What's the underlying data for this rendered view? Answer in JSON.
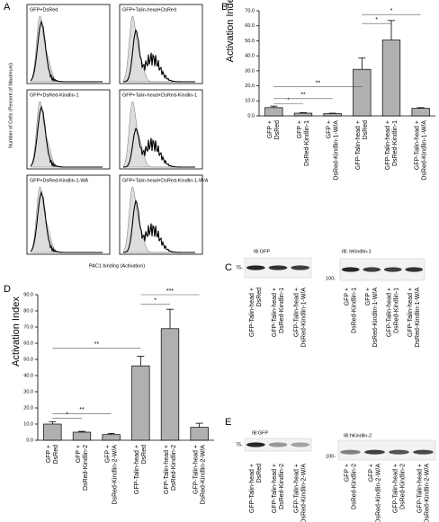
{
  "figure": {
    "letters": [
      "A",
      "B",
      "C",
      "D",
      "E"
    ],
    "histograms": {
      "labels": [
        "GFP+DsRed",
        "GFP+Talin-head+DsRed",
        "GFP+DsRed-Kindlin-1",
        "GFP+Talin-head+DsRed-Kindlin-1",
        "GFP+DsRed-Kindlin-1-WA",
        "GFP+Talin-head+DsRed-Kindlin-1-W/A"
      ],
      "y_label": "Number of Cells (Percent of Maximum)",
      "x_label": "PAC1 binding (Activation)"
    },
    "blots": [
      {
        "title": "IB:GFP",
        "marker": "75-",
        "lanes": [
          [
            "GFP-Talin-head +",
            "DsRed"
          ],
          [
            "GFP-Talin-head +",
            "DsRed-Kindlin-1"
          ],
          [
            "GFP-Talin-head +",
            "DsRed-Kindlin-1-W/A"
          ]
        ]
      },
      {
        "title": "IB: hKindlin-1",
        "marker": "100-",
        "lanes": [
          [
            "GFP +",
            "DsRed-Kindlin-1"
          ],
          [
            "GFP +",
            "DsRed-Kindlin-1-W/A"
          ],
          [
            "GFP-Talin-head +",
            "DsRed-Kindlin-1"
          ],
          [
            "GFP-Talin-head +",
            "DsRed-Kindlin-1-W/A"
          ]
        ]
      },
      {
        "title": "IB:GFP",
        "marker": "75-",
        "lanes": [
          [
            "GFP-Talin-head +",
            "DsRed"
          ],
          [
            "GFP-Talin-head +",
            "DsRed-Kindlin-2"
          ],
          [
            "GFP-Talin-head +",
            "DsRed-Kindlin-2-W/A"
          ]
        ]
      },
      {
        "title": "IB:hKindlin-2",
        "marker": "100-",
        "lanes": [
          [
            "GFP +",
            "DsRed-Kindlin-2"
          ],
          [
            "GFP +",
            "DsRed-Kindlin-2-W/A"
          ],
          [
            "GFP-Talin-head +",
            "DsRed-Kindlin-2"
          ],
          [
            "GFP-Talin-head +",
            "DsRed-Kindlin-2-W/A"
          ]
        ]
      }
    ]
  },
  "chart_data": [
    {
      "type": "bar",
      "y_label": "Activation Index",
      "color": "#b0b0b0",
      "categories": [
        [
          "GFP +",
          "DsRed"
        ],
        [
          "GFP +",
          "DsRed-Kindlin-1"
        ],
        [
          "GFP +",
          "DsRed-Kindlin-1-W/A"
        ],
        [
          "GFP-Talin-head +",
          "DsRed"
        ],
        [
          "GFP-Talin-head +",
          "DsRed-Kindlin-1"
        ],
        [
          "GFP-Talin-head +",
          "DsRed-Kindlin-1-W/A"
        ]
      ],
      "values": [
        5.5,
        1.8,
        1.5,
        31,
        50.5,
        5
      ],
      "errors": [
        1,
        0.4,
        0.3,
        7.5,
        13,
        0.5
      ],
      "annotations": [
        "*",
        "**",
        "**",
        "*",
        "*"
      ],
      "ylim": [
        0,
        70
      ],
      "yticks": [
        {
          "value": 0,
          "label": "0.0"
        },
        {
          "value": 10,
          "label": "10.0"
        },
        {
          "value": 20,
          "label": "20.0"
        },
        {
          "value": 30,
          "label": "30.0"
        },
        {
          "value": 40,
          "label": "40.0"
        },
        {
          "value": 50,
          "label": "50.0"
        },
        {
          "value": 60,
          "label": "60.0"
        },
        {
          "value": 70,
          "label": "70.0"
        }
      ]
    },
    {
      "type": "bar",
      "y_label": "Activation Index",
      "color": "#b0b0b0",
      "categories": [
        [
          "GFP +",
          "DsRed"
        ],
        [
          "GFP +",
          "DsRed-Kindlin-2"
        ],
        [
          "GFP +",
          "DsRed-Kindlin-2-W/A"
        ],
        [
          "GFP-Talin-head +",
          "DsRed"
        ],
        [
          "GFP-Talin-head +",
          "DsRed-Kindlin-2"
        ],
        [
          "GFP-Talin-head +",
          "DsRed-Kindlin-2-W/A"
        ]
      ],
      "values": [
        10,
        5,
        3.5,
        46,
        69,
        8
      ],
      "errors": [
        1.5,
        0.5,
        0.7,
        6,
        12,
        2.5
      ],
      "annotations": [
        "*",
        "**",
        "**",
        "*",
        "***"
      ],
      "ylim": [
        0,
        90
      ],
      "yticks": [
        {
          "value": 0,
          "label": "0.0"
        },
        {
          "value": 10,
          "label": "10.0"
        },
        {
          "value": 20,
          "label": "20.0"
        },
        {
          "value": 30,
          "label": "30.0"
        },
        {
          "value": 40,
          "label": "40.0"
        },
        {
          "value": 50,
          "label": "50.0"
        },
        {
          "value": 60,
          "label": "60.0"
        },
        {
          "value": 70,
          "label": "70.0"
        },
        {
          "value": 80,
          "label": "80.0"
        },
        {
          "value": 90,
          "label": "90.0"
        }
      ]
    }
  ]
}
